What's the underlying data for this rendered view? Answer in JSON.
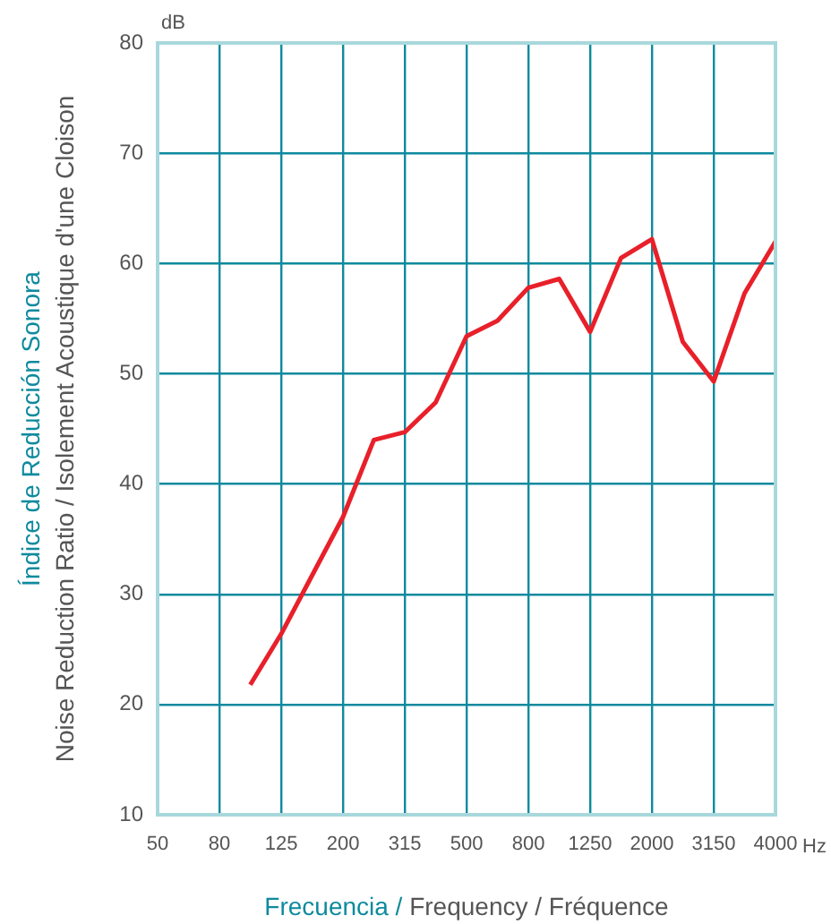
{
  "chart_data": {
    "type": "line",
    "xlabel": "Frecuencia / Frequency / Fréquence",
    "ylabel": "Índice de Reducción Sonora\nNoise Reduction Ratio / Isolement Acoustique d'une Cloison",
    "annotations": [
      "dB",
      "Hz"
    ],
    "categories": [
      "50",
      null,
      "80",
      null,
      "125",
      null,
      "200",
      null,
      "315",
      null,
      "500",
      null,
      "800",
      null,
      "1250",
      null,
      "2000",
      null,
      "3150",
      null,
      "4000"
    ],
    "series": [
      {
        "color": "#e8202a",
        "values": [
          null,
          null,
          null,
          21.8,
          26.4,
          31.7,
          37.0,
          44.0,
          44.7,
          47.4,
          53.4,
          54.8,
          57.8,
          58.6,
          53.8,
          60.5,
          62.2,
          52.9,
          49.3,
          57.3,
          62.0
        ]
      }
    ],
    "ylim": [
      10,
      80
    ],
    "yticks": [
      10,
      20,
      30,
      40,
      50,
      60,
      70,
      80
    ],
    "grid": true,
    "legend": false,
    "marker": "none",
    "line_style": "solid"
  }
}
